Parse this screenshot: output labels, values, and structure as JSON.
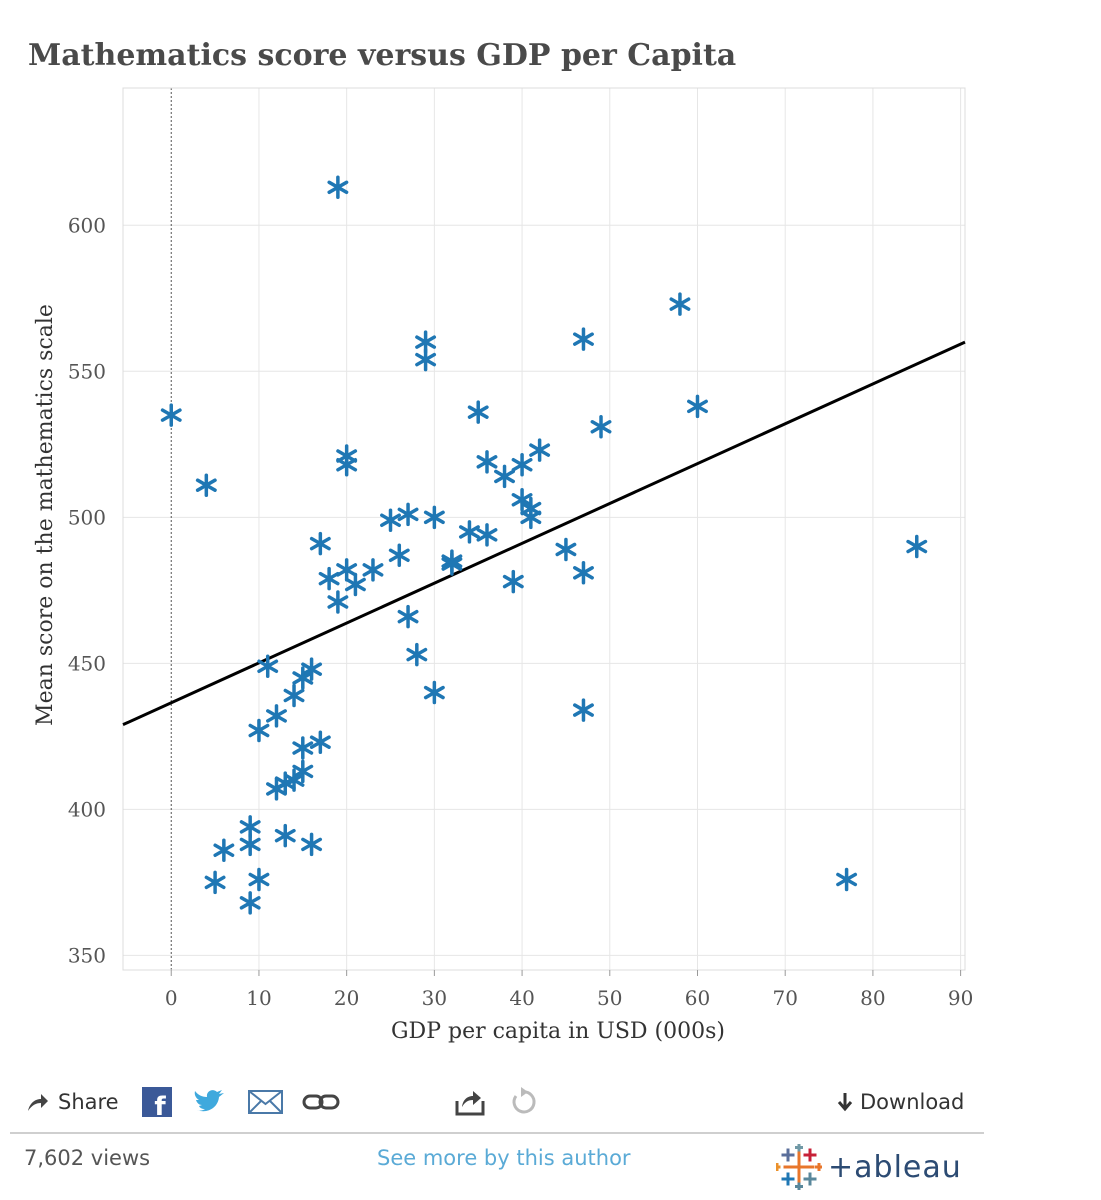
{
  "chart_data": {
    "type": "scatter",
    "title": "Mathematics score versus GDP per Capita",
    "xlabel": "GDP per capita in USD (000s)",
    "ylabel": "Mean score on the mathematics scale",
    "xlim": [
      -5.5,
      90.5
    ],
    "ylim": [
      345,
      647
    ],
    "x_ticks": [
      0,
      10,
      20,
      30,
      40,
      50,
      60,
      70,
      80,
      90
    ],
    "y_ticks": [
      350,
      400,
      450,
      500,
      550,
      600
    ],
    "grid": true,
    "marker": "asterisk",
    "marker_color": "#1f77b4",
    "trendline": {
      "x": [
        -5.5,
        90.5
      ],
      "y": [
        429,
        560
      ],
      "color": "#000000"
    },
    "zero_reference_line": true,
    "points": [
      {
        "x": 19,
        "y": 613
      },
      {
        "x": 58,
        "y": 573
      },
      {
        "x": 29,
        "y": 560
      },
      {
        "x": 47,
        "y": 561
      },
      {
        "x": 29,
        "y": 554
      },
      {
        "x": 60,
        "y": 538
      },
      {
        "x": 0,
        "y": 535
      },
      {
        "x": 35,
        "y": 536
      },
      {
        "x": 49,
        "y": 531
      },
      {
        "x": 42,
        "y": 523
      },
      {
        "x": 20,
        "y": 521
      },
      {
        "x": 20,
        "y": 518
      },
      {
        "x": 36,
        "y": 519
      },
      {
        "x": 40,
        "y": 518
      },
      {
        "x": 38,
        "y": 514
      },
      {
        "x": 4,
        "y": 511
      },
      {
        "x": 40,
        "y": 506
      },
      {
        "x": 41,
        "y": 503
      },
      {
        "x": 41,
        "y": 500
      },
      {
        "x": 27,
        "y": 501
      },
      {
        "x": 30,
        "y": 500
      },
      {
        "x": 25,
        "y": 499
      },
      {
        "x": 34,
        "y": 495
      },
      {
        "x": 36,
        "y": 494
      },
      {
        "x": 17,
        "y": 491
      },
      {
        "x": 85,
        "y": 490
      },
      {
        "x": 45,
        "y": 489
      },
      {
        "x": 26,
        "y": 487
      },
      {
        "x": 32,
        "y": 485
      },
      {
        "x": 32,
        "y": 484
      },
      {
        "x": 20,
        "y": 482
      },
      {
        "x": 23,
        "y": 482
      },
      {
        "x": 47,
        "y": 481
      },
      {
        "x": 18,
        "y": 479
      },
      {
        "x": 39,
        "y": 478
      },
      {
        "x": 21,
        "y": 477
      },
      {
        "x": 19,
        "y": 471
      },
      {
        "x": 27,
        "y": 466
      },
      {
        "x": 28,
        "y": 453
      },
      {
        "x": 11,
        "y": 449
      },
      {
        "x": 16,
        "y": 448
      },
      {
        "x": 15,
        "y": 445
      },
      {
        "x": 14,
        "y": 439
      },
      {
        "x": 30,
        "y": 440
      },
      {
        "x": 47,
        "y": 434
      },
      {
        "x": 12,
        "y": 432
      },
      {
        "x": 10,
        "y": 427
      },
      {
        "x": 17,
        "y": 423
      },
      {
        "x": 15,
        "y": 421
      },
      {
        "x": 15,
        "y": 413
      },
      {
        "x": 14,
        "y": 410
      },
      {
        "x": 13,
        "y": 409
      },
      {
        "x": 12,
        "y": 407
      },
      {
        "x": 9,
        "y": 394
      },
      {
        "x": 13,
        "y": 391
      },
      {
        "x": 9,
        "y": 388
      },
      {
        "x": 16,
        "y": 388
      },
      {
        "x": 6,
        "y": 386
      },
      {
        "x": 10,
        "y": 376
      },
      {
        "x": 5,
        "y": 375
      },
      {
        "x": 77,
        "y": 376
      },
      {
        "x": 9,
        "y": 368
      }
    ]
  },
  "toolbar": {
    "share_label": "Share",
    "download_label": "Download"
  },
  "footer": {
    "views": "7,602 views",
    "more_link": "See more by this author",
    "logo_text": "+ableau"
  },
  "colors": {
    "marker": "#1f77b4",
    "link": "#5aaad6",
    "gridline": "#e6e6e6"
  },
  "icons": [
    "share-arrow-icon",
    "facebook-icon",
    "twitter-icon",
    "email-icon",
    "link-icon",
    "export-icon",
    "revert-icon",
    "download-arrow-icon",
    "tableau-logo-icon"
  ]
}
